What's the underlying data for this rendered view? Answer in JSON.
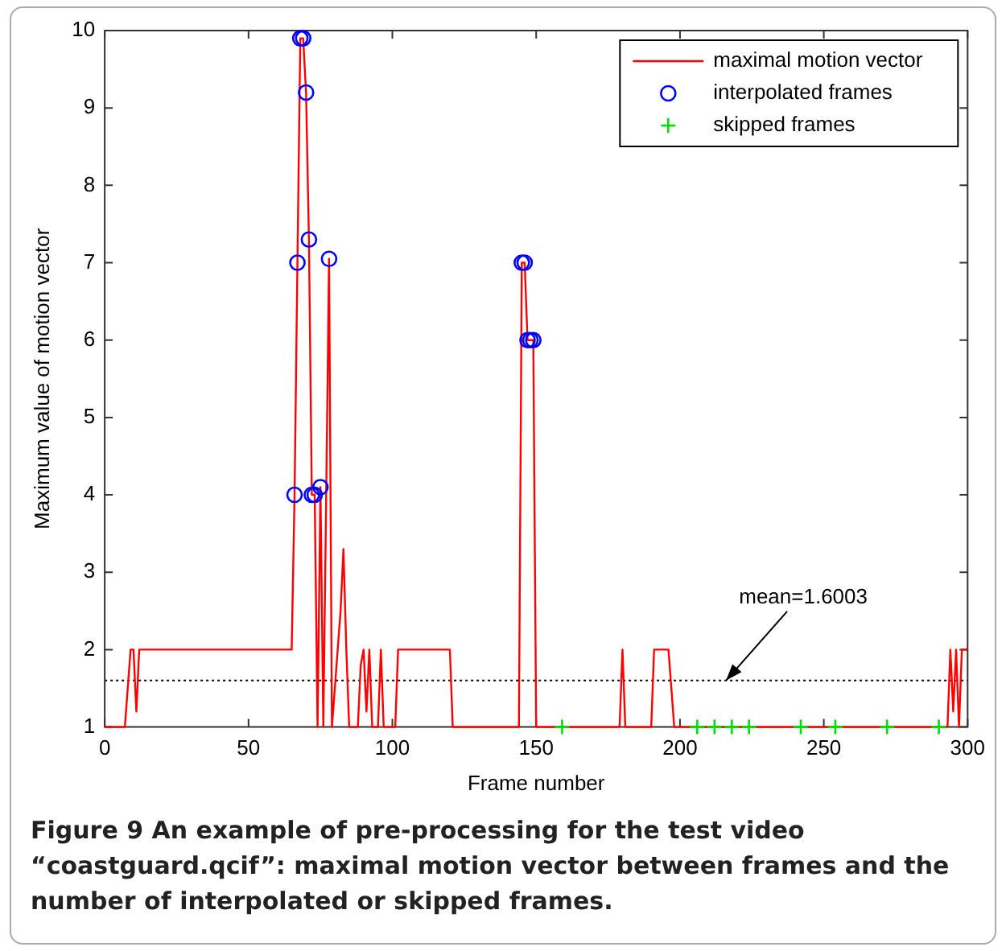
{
  "chart_data": {
    "type": "line",
    "xlabel": "Frame number",
    "ylabel": "Maximum value of motion vector",
    "xlim": [
      0,
      300
    ],
    "xticks": [
      0,
      50,
      100,
      150,
      200,
      250,
      300
    ],
    "ylim": [
      1,
      10
    ],
    "yticks": [
      1,
      2,
      3,
      4,
      5,
      6,
      7,
      8,
      9,
      10
    ],
    "grid": false,
    "legend": "top right",
    "series": [
      {
        "name": "maximal motion vector",
        "color": "#ff0000",
        "marker": "none",
        "x": [
          0,
          7,
          8,
          9,
          10,
          11,
          12,
          65,
          66,
          67,
          68,
          69,
          70,
          71,
          72,
          73,
          74,
          75,
          76,
          77,
          78,
          79,
          80,
          81,
          82,
          83,
          84,
          85,
          88,
          89,
          90,
          91,
          92,
          93,
          95,
          96,
          97,
          101,
          102,
          120,
          121,
          144,
          145,
          146,
          147,
          148,
          149,
          150,
          151,
          179,
          180,
          181,
          182,
          190,
          191,
          196,
          197,
          198,
          293,
          294,
          295,
          296,
          297,
          298,
          299,
          300
        ],
        "values": [
          1,
          1,
          1.5,
          2,
          2,
          1.2,
          2,
          2,
          4,
          7,
          9.9,
          9.9,
          9.2,
          7.3,
          4,
          4,
          1,
          4.1,
          1,
          4,
          7.05,
          1,
          1.5,
          2,
          2.5,
          3.3,
          2,
          1,
          1,
          1.8,
          2,
          1.2,
          2,
          1,
          1,
          2,
          1,
          1,
          2,
          2,
          1,
          1,
          7,
          7,
          6,
          6,
          6,
          1,
          1,
          1,
          2,
          1,
          1,
          1,
          2,
          2,
          1.5,
          1,
          1,
          2,
          1.2,
          2,
          1,
          2,
          2,
          2
        ]
      },
      {
        "name": "interpolated frames",
        "type": "scatter",
        "color": "#0000ff",
        "marker": "circle",
        "x": [
          66,
          67,
          68,
          69,
          70,
          71,
          72,
          73,
          75,
          78,
          145,
          146,
          147,
          148,
          149
        ],
        "values": [
          4,
          7,
          9.9,
          9.9,
          9.2,
          7.3,
          4,
          4,
          4.1,
          7.05,
          7,
          7,
          6,
          6,
          6
        ]
      },
      {
        "name": "skipped frames",
        "type": "scatter",
        "color": "#00dd00",
        "marker": "cross",
        "x": [
          159,
          206,
          212,
          218,
          224,
          242,
          254,
          272,
          290
        ],
        "values": [
          1,
          1,
          1,
          1,
          1,
          1,
          1,
          1,
          1
        ]
      }
    ],
    "ref_lines": [
      {
        "axis": "y",
        "value": 1.6003,
        "color": "#000000",
        "line_style": "dotted"
      }
    ],
    "annotations": [
      {
        "text": "mean=1.6003",
        "x": 216,
        "y": 1.6003
      },
      "Figure 9 An example of pre-processing for the test video “coastguard.qcif”: maximal motion vector between frames and the number of interpolated or skipped frames."
    ]
  }
}
